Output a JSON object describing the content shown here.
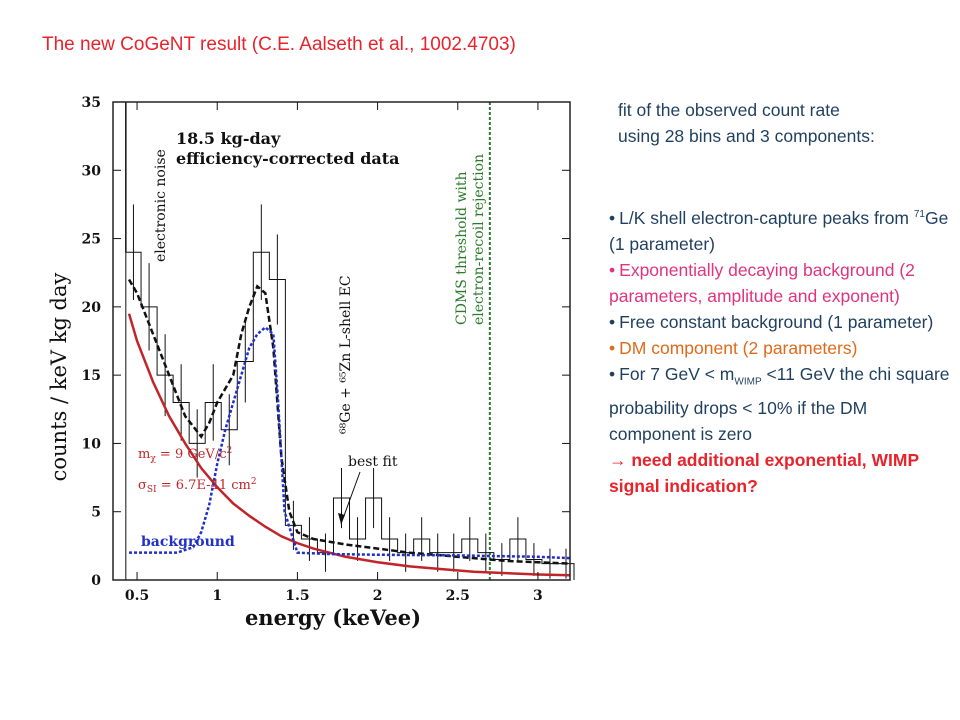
{
  "slide": {
    "title": "The new CoGeNT result (C.E. Aalseth et al., 1002.4703)",
    "intro": "fit of the observed count rate using 28 bins and 3 components:",
    "bullet1_pre": "L/K shell electron-capture peaks from ",
    "bullet1_sup": "71",
    "bullet1_post": "Ge (1 parameter)",
    "bullet2": "Exponentially decaying background (2 parameters, amplitude and exponent)",
    "bullet3": "Free constant background (1 parameter)",
    "bullet4": "DM component (2 parameters)",
    "bullet5_pre": "For 7 GeV < m",
    "bullet5_sub": "WIMP",
    "bullet5_post": " <11 GeV the chi square probability drops < 10% if the DM component is zero",
    "bullet6": "→ need additional exponential, WIMP signal indication?",
    "colors": {
      "title": "#e8232b",
      "text": "#1f3f5f",
      "pink": "#e0347f",
      "orange": "#e06a1a",
      "conclusion": "#e8232b"
    }
  },
  "chart_data": {
    "type": "line",
    "xlabel": "energy (keVee)",
    "ylabel": "counts / keV kg day",
    "xlim": [
      0.35,
      3.2
    ],
    "ylim": [
      0,
      35
    ],
    "xticks": [
      "0.5",
      "1",
      "1.5",
      "2",
      "2.5",
      "3"
    ],
    "yticks": [
      "0",
      "5",
      "10",
      "15",
      "20",
      "25",
      "30",
      "35"
    ],
    "header_line1": "18.5 kg-day",
    "header_line2": "efficiency-corrected data",
    "mass_label": "m_χ = 9 GeV/c²",
    "xsec_label": "σ_SI = 6.7E-41 cm²",
    "label_noise": "electronic noise",
    "label_cdms": "CDMS threshold with electron-recoil rejection",
    "label_ge": "⁶⁸Ge + ⁶⁵Zn L-shell EC",
    "label_bestfit": "best fit",
    "label_background": "background",
    "cdms_threshold": 2.7,
    "noise_edge": 0.43,
    "histogram": {
      "bin_edges": [
        0.43,
        0.525,
        0.625,
        0.725,
        0.825,
        0.925,
        1.025,
        1.125,
        1.225,
        1.325,
        1.425,
        1.525,
        1.625,
        1.725,
        1.825,
        1.925,
        2.025,
        2.125,
        2.225,
        2.325,
        2.425,
        2.525,
        2.625,
        2.725,
        2.825,
        2.925,
        3.025,
        3.125,
        3.225
      ],
      "values": [
        24,
        20,
        15,
        13,
        10,
        13,
        11,
        16,
        24,
        22,
        4,
        3,
        2,
        6,
        3,
        6,
        3,
        2,
        3,
        2,
        2,
        3,
        2,
        1.5,
        3,
        1.5,
        1.2,
        1.2
      ],
      "errors": [
        3.5,
        3.2,
        3.0,
        2.8,
        2.5,
        2.8,
        2.6,
        3.0,
        3.5,
        3.3,
        1.8,
        1.6,
        1.4,
        2.2,
        1.6,
        2.2,
        1.6,
        1.4,
        1.6,
        1.4,
        1.4,
        1.6,
        1.4,
        1.2,
        1.6,
        1.2,
        1.1,
        1.1
      ]
    },
    "series": [
      {
        "name": "best fit",
        "color": "#111111",
        "style": "dashed",
        "x": [
          0.45,
          0.5,
          0.55,
          0.6,
          0.7,
          0.8,
          0.9,
          0.95,
          1.0,
          1.05,
          1.1,
          1.15,
          1.2,
          1.25,
          1.3,
          1.35,
          1.4,
          1.45,
          1.5,
          1.6,
          1.8,
          2.0,
          2.2,
          2.4,
          2.6,
          2.8,
          3.0,
          3.2
        ],
        "y": [
          22,
          21,
          19.5,
          18,
          15,
          12,
          10.5,
          11.5,
          13,
          14,
          15,
          18,
          20,
          21.5,
          21,
          17,
          9,
          5,
          3.5,
          3.0,
          2.6,
          2.3,
          2.0,
          1.8,
          1.6,
          1.4,
          1.3,
          1.2
        ]
      },
      {
        "name": "exponential",
        "color": "#c0252a",
        "style": "solid",
        "x": [
          0.45,
          0.5,
          0.6,
          0.7,
          0.8,
          0.9,
          1.0,
          1.1,
          1.2,
          1.3,
          1.4,
          1.5,
          1.6,
          1.8,
          2.0,
          2.2,
          2.4,
          2.6,
          2.8,
          3.0,
          3.2
        ],
        "y": [
          19.5,
          17.5,
          14.5,
          12,
          10,
          8.2,
          6.8,
          5.6,
          4.7,
          3.9,
          3.2,
          2.7,
          2.3,
          1.7,
          1.3,
          1.0,
          0.8,
          0.6,
          0.5,
          0.4,
          0.35
        ]
      },
      {
        "name": "background",
        "color": "#2030c8",
        "style": "dotted",
        "x": [
          0.45,
          0.6,
          0.75,
          0.85,
          0.9,
          0.95,
          1.0,
          1.05,
          1.1,
          1.15,
          1.2,
          1.25,
          1.3,
          1.35,
          1.38,
          1.42,
          1.5,
          1.7,
          2.0,
          2.5,
          3.0,
          3.2
        ],
        "y": [
          2,
          2,
          2,
          2.4,
          3.5,
          5.5,
          8.5,
          11,
          13,
          15,
          17,
          18,
          18.5,
          18,
          13,
          5,
          2,
          1.9,
          1.85,
          1.8,
          1.7,
          1.6
        ]
      }
    ]
  }
}
